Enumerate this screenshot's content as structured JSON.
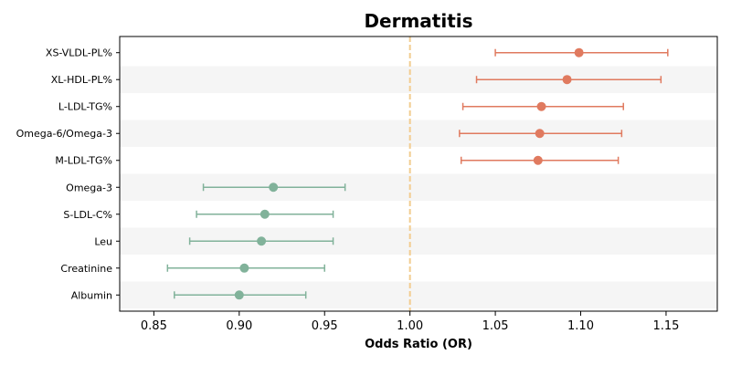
{
  "chart_data": {
    "type": "forest",
    "title": "Dermatitis",
    "xlabel": "Odds Ratio (OR)",
    "xlim": [
      0.83,
      1.18
    ],
    "xticks": [
      0.85,
      0.9,
      0.95,
      1.0,
      1.05,
      1.1,
      1.15
    ],
    "xtick_labels": [
      "0.85",
      "0.90",
      "0.95",
      "1.00",
      "1.05",
      "1.10",
      "1.15"
    ],
    "reference_line": 1.0,
    "grid": false,
    "row_banding": true,
    "colors": {
      "positive": "#e07a5f",
      "negative": "#81b29a",
      "reference": "#f2cc8f",
      "band": "#f5f5f5"
    },
    "items": [
      {
        "label": "XS-VLDL-PL%",
        "or": 1.099,
        "lower": 1.05,
        "upper": 1.151
      },
      {
        "label": "XL-HDL-PL%",
        "or": 1.092,
        "lower": 1.039,
        "upper": 1.147
      },
      {
        "label": "L-LDL-TG%",
        "or": 1.077,
        "lower": 1.031,
        "upper": 1.125
      },
      {
        "label": "Omega-6/Omega-3",
        "or": 1.076,
        "lower": 1.029,
        "upper": 1.124
      },
      {
        "label": "M-LDL-TG%",
        "or": 1.075,
        "lower": 1.03,
        "upper": 1.122
      },
      {
        "label": "Omega-3",
        "or": 0.92,
        "lower": 0.879,
        "upper": 0.962
      },
      {
        "label": "S-LDL-C%",
        "or": 0.915,
        "lower": 0.875,
        "upper": 0.955
      },
      {
        "label": "Leu",
        "or": 0.913,
        "lower": 0.871,
        "upper": 0.955
      },
      {
        "label": "Creatinine",
        "or": 0.903,
        "lower": 0.858,
        "upper": 0.95
      },
      {
        "label": "Albumin",
        "or": 0.9,
        "lower": 0.862,
        "upper": 0.939
      }
    ]
  }
}
